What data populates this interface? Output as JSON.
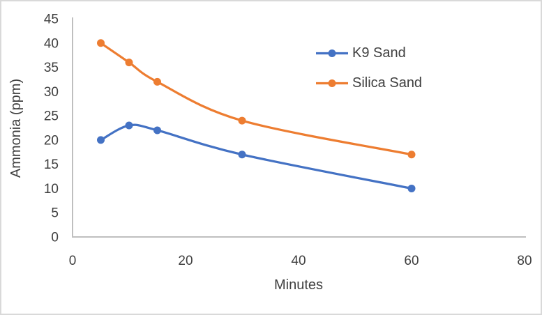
{
  "chart_data": {
    "type": "line",
    "title": "",
    "xlabel": "Minutes",
    "ylabel": "Ammonia (ppm)",
    "x": [
      5,
      10,
      15,
      30,
      60
    ],
    "series": [
      {
        "name": "K9 Sand",
        "color": "#4472C4",
        "values": [
          20,
          23,
          22,
          17,
          10
        ]
      },
      {
        "name": "Silica Sand",
        "color": "#ED7D31",
        "values": [
          40,
          36,
          32,
          24,
          17
        ]
      }
    ],
    "xlim": [
      0,
      80
    ],
    "ylim": [
      0,
      45
    ],
    "x_ticks": [
      0,
      20,
      40,
      60,
      80
    ],
    "y_ticks": [
      0,
      5,
      10,
      15,
      20,
      25,
      30,
      35,
      40,
      45
    ],
    "grid": false,
    "smooth": true,
    "legend_position": "inside-top-right",
    "axis_color": "#BFBFBF",
    "text_color": "#404040",
    "border_color": "#D9D9D9",
    "background_color": "#FFFFFF"
  }
}
